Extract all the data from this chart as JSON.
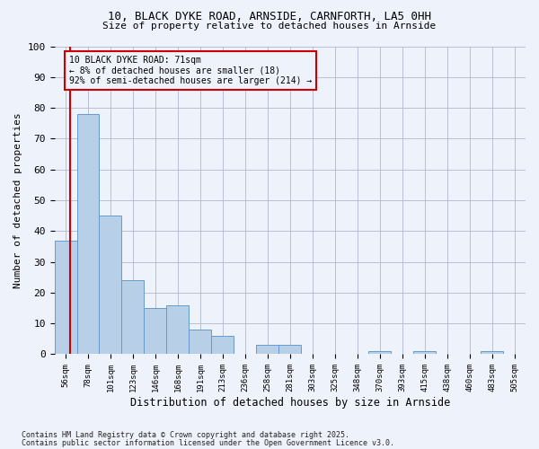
{
  "title1": "10, BLACK DYKE ROAD, ARNSIDE, CARNFORTH, LA5 0HH",
  "title2": "Size of property relative to detached houses in Arnside",
  "xlabel": "Distribution of detached houses by size in Arnside",
  "ylabel": "Number of detached properties",
  "bar_values": [
    37,
    78,
    45,
    24,
    15,
    16,
    8,
    6,
    0,
    3,
    3,
    0,
    0,
    0,
    1,
    0,
    1,
    0,
    0,
    1,
    0
  ],
  "bin_labels": [
    "56sqm",
    "78sqm",
    "101sqm",
    "123sqm",
    "146sqm",
    "168sqm",
    "191sqm",
    "213sqm",
    "236sqm",
    "258sqm",
    "281sqm",
    "303sqm",
    "325sqm",
    "348sqm",
    "370sqm",
    "393sqm",
    "415sqm",
    "438sqm",
    "460sqm",
    "483sqm",
    "505sqm"
  ],
  "bar_color": "#b8cfe8",
  "bar_edge_color": "#6699cc",
  "annotation_text": "10 BLACK DYKE ROAD: 71sqm\n← 8% of detached houses are smaller (18)\n92% of semi-detached houses are larger (214) →",
  "annotation_box_color": "#cc0000",
  "ylim": [
    0,
    100
  ],
  "yticks": [
    0,
    10,
    20,
    30,
    40,
    50,
    60,
    70,
    80,
    90,
    100
  ],
  "footer1": "Contains HM Land Registry data © Crown copyright and database right 2025.",
  "footer2": "Contains public sector information licensed under the Open Government Licence v3.0.",
  "background_color": "#eef2fa",
  "grid_color": "#b0b8d0"
}
